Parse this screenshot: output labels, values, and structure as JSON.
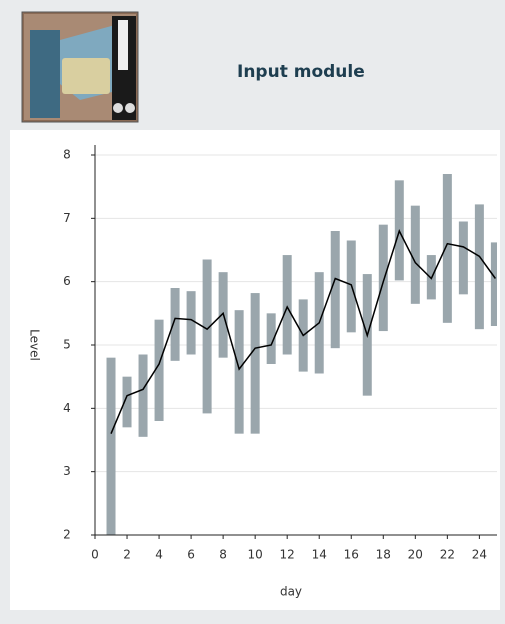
{
  "header": {
    "title": "Input module"
  },
  "chart_data": {
    "type": "range-line",
    "xlabel": "day",
    "ylabel": "Level",
    "x": [
      1,
      2,
      3,
      4,
      5,
      6,
      7,
      8,
      9,
      10,
      11,
      12,
      13,
      14,
      15,
      16,
      17,
      18,
      19,
      20,
      21,
      22,
      23,
      24,
      25
    ],
    "values": [
      3.6,
      4.2,
      4.3,
      4.7,
      5.42,
      5.4,
      5.25,
      5.5,
      4.62,
      4.95,
      5.0,
      5.6,
      5.15,
      5.35,
      6.05,
      5.95,
      5.15,
      6.0,
      6.8,
      6.3,
      6.05,
      6.6,
      6.55,
      6.4,
      6.05
    ],
    "low": [
      1.8,
      3.7,
      3.55,
      3.8,
      4.75,
      4.85,
      3.92,
      4.8,
      3.6,
      3.6,
      4.7,
      4.85,
      4.58,
      4.55,
      4.95,
      5.2,
      4.2,
      5.22,
      6.02,
      5.65,
      5.72,
      5.35,
      5.8,
      5.25,
      5.3
    ],
    "high": [
      4.8,
      4.5,
      4.85,
      5.4,
      5.9,
      5.85,
      6.35,
      6.15,
      5.55,
      5.82,
      5.5,
      6.42,
      5.72,
      6.15,
      6.8,
      6.65,
      6.12,
      6.9,
      7.6,
      7.2,
      6.42,
      7.7,
      6.95,
      7.22,
      6.62
    ],
    "bar_color": "#9aa6ac",
    "line_color": "#000000",
    "xlim": [
      0,
      25.1
    ],
    "ylim": [
      2,
      8
    ],
    "xticks": [
      0,
      2,
      4,
      6,
      8,
      10,
      12,
      14,
      16,
      18,
      20,
      22,
      24
    ],
    "yticks": [
      2,
      3,
      4,
      5,
      6,
      7,
      8
    ],
    "grid": true
  }
}
